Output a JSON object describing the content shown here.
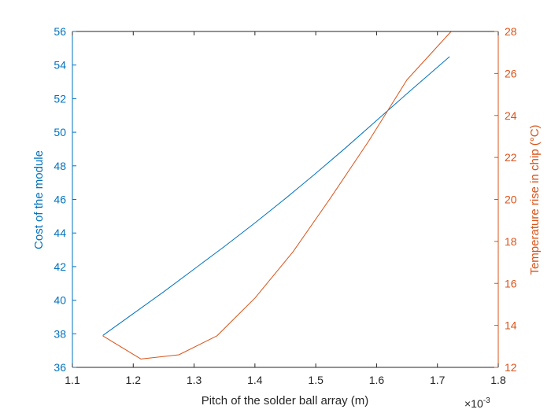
{
  "chart_data": {
    "type": "line",
    "title": "",
    "xlabel": "Pitch of the solder ball array (m)",
    "x_exponent_label": "×10",
    "x_exponent_power": "-3",
    "xlim": [
      1.1,
      1.8
    ],
    "x_ticks": [
      1.1,
      1.2,
      1.3,
      1.4,
      1.5,
      1.6,
      1.7,
      1.8
    ],
    "x_tick_labels": [
      "1.1",
      "1.2",
      "1.3",
      "1.4",
      "1.5",
      "1.6",
      "1.7",
      "1.8"
    ],
    "y_left": {
      "label": "Cost of the module",
      "lim": [
        36,
        56
      ],
      "ticks": [
        36,
        38,
        40,
        42,
        44,
        46,
        48,
        50,
        52,
        54,
        56
      ],
      "tick_labels": [
        "36",
        "38",
        "40",
        "42",
        "44",
        "46",
        "48",
        "50",
        "52",
        "54",
        "56"
      ],
      "color": "#0072BD"
    },
    "y_right": {
      "label": "Temperature rise in chip (°C)",
      "lim": [
        12,
        28
      ],
      "ticks": [
        12,
        14,
        16,
        18,
        20,
        22,
        24,
        26,
        28
      ],
      "tick_labels": [
        "12",
        "14",
        "16",
        "18",
        "20",
        "22",
        "24",
        "26",
        "28"
      ],
      "color": "#D95319"
    },
    "grid": false,
    "series": [
      {
        "axis": "left",
        "color": "#0072BD",
        "x": [
          1.15,
          1.2,
          1.25,
          1.3,
          1.35,
          1.4,
          1.45,
          1.5,
          1.55,
          1.6,
          1.65,
          1.72
        ],
        "y": [
          37.9,
          39.2,
          40.5,
          41.85,
          43.2,
          44.6,
          46.05,
          47.55,
          49.1,
          50.7,
          52.3,
          54.5
        ]
      },
      {
        "axis": "right",
        "color": "#D95319",
        "x": [
          1.15,
          1.2125,
          1.275,
          1.3375,
          1.4,
          1.4625,
          1.525,
          1.5875,
          1.65,
          1.7225
        ],
        "y": [
          13.5,
          12.4,
          12.6,
          13.5,
          15.3,
          17.5,
          20.1,
          22.8,
          25.7,
          28.0
        ]
      }
    ]
  }
}
